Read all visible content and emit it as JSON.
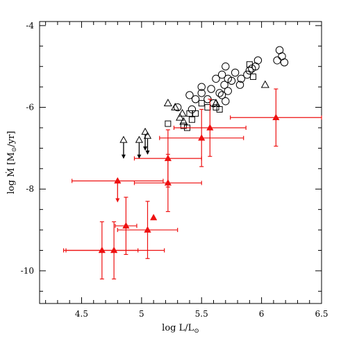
{
  "chart_data": {
    "type": "scatter",
    "title": "",
    "xlabel": "log L/L",
    "xlabel_sub": "⊙",
    "ylabel_main": "log Ṁ [M",
    "ylabel_sub": "⊙",
    "ylabel_tail": "/yr]",
    "xlim": [
      4.15,
      6.5
    ],
    "ylim": [
      -10.8,
      -3.9
    ],
    "x_ticks": [
      4.5,
      5,
      5.5,
      6,
      6.5
    ],
    "x_tick_labels": [
      "4.5",
      "5",
      "5.5",
      "6",
      "6.5"
    ],
    "y_ticks": [
      -10,
      -8,
      -6,
      -4
    ],
    "y_tick_labels": [
      "-10",
      "-8",
      "-6",
      "-4"
    ],
    "x_minor_step": 0.1,
    "y_minor_step": 0.5,
    "grid": false,
    "colors": {
      "red": "#ee1111",
      "black": "#000000"
    },
    "series": [
      {
        "marker": "circle-open",
        "points": [
          [
            6.15,
            -4.6
          ],
          [
            6.17,
            -4.75
          ],
          [
            6.19,
            -4.9
          ],
          [
            6.13,
            -4.85
          ],
          [
            5.97,
            -4.85
          ],
          [
            5.95,
            -5.0
          ],
          [
            5.92,
            -5.05
          ],
          [
            5.9,
            -5.1
          ],
          [
            5.88,
            -5.2
          ],
          [
            5.83,
            -5.3
          ],
          [
            5.78,
            -5.15
          ],
          [
            5.82,
            -5.45
          ],
          [
            5.7,
            -5.0
          ],
          [
            5.72,
            -5.3
          ],
          [
            5.75,
            -5.35
          ],
          [
            5.67,
            -5.2
          ],
          [
            5.69,
            -5.45
          ],
          [
            5.62,
            -5.3
          ],
          [
            5.72,
            -5.6
          ],
          [
            5.65,
            -5.65
          ],
          [
            5.58,
            -5.55
          ],
          [
            5.6,
            -5.9
          ],
          [
            5.67,
            -5.7
          ],
          [
            5.7,
            -5.85
          ],
          [
            5.5,
            -5.5
          ],
          [
            5.5,
            -5.65
          ],
          [
            5.4,
            -5.7
          ],
          [
            5.45,
            -5.8
          ],
          [
            5.42,
            -6.05
          ],
          [
            5.3,
            -6.0
          ],
          [
            5.55,
            -5.8
          ]
        ]
      },
      {
        "marker": "square-open",
        "points": [
          [
            5.93,
            -5.25
          ],
          [
            5.9,
            -4.95
          ],
          [
            5.5,
            -5.9
          ],
          [
            5.55,
            -6.0
          ],
          [
            5.62,
            -6.0
          ],
          [
            5.65,
            -6.05
          ],
          [
            5.4,
            -6.15
          ],
          [
            5.45,
            -6.15
          ],
          [
            5.38,
            -6.5
          ],
          [
            5.35,
            -6.45
          ],
          [
            5.42,
            -6.3
          ],
          [
            5.22,
            -6.4
          ]
        ]
      },
      {
        "marker": "triangle-open",
        "points": [
          [
            6.03,
            -5.45
          ],
          [
            5.22,
            -5.9
          ],
          [
            5.28,
            -6.0
          ],
          [
            5.34,
            -6.15
          ],
          [
            5.32,
            -6.25
          ],
          [
            5.35,
            -6.35
          ],
          [
            5.62,
            -5.9
          ]
        ]
      },
      {
        "marker": "triangle-open-upperlimit",
        "points": [
          [
            4.85,
            -6.8
          ],
          [
            4.98,
            -6.8
          ],
          [
            5.03,
            -6.6
          ],
          [
            5.05,
            -6.7
          ]
        ]
      },
      {
        "marker": "triangle-filled-errorbar",
        "color": "#ee1111",
        "points": [
          {
            "x": 6.12,
            "y": -6.25,
            "xerr": 0.38,
            "yerr": 0.7
          },
          {
            "x": 5.57,
            "y": -6.5,
            "xerr": 0.3,
            "yerr": 0.7
          },
          {
            "x": 5.5,
            "y": -6.75,
            "xerr": 0.35,
            "yerr": 0.7
          },
          {
            "x": 5.22,
            "y": -7.25,
            "xerr": 0.28,
            "yerr": 0.7
          },
          {
            "x": 5.22,
            "y": -7.85,
            "xerr": 0.28,
            "yerr": 0.7
          },
          {
            "x": 4.8,
            "y": -7.8,
            "xerr": 0.38,
            "yerr": 0.0,
            "upperlimit": true
          },
          {
            "x": 5.1,
            "y": -8.7,
            "xerr": 0.0,
            "yerr": 0.0
          },
          {
            "x": 4.87,
            "y": -8.9,
            "xerr": 0.09,
            "yerr": 0.7
          },
          {
            "x": 5.05,
            "y": -9.0,
            "xerr": 0.25,
            "yerr": 0.7
          },
          {
            "x": 4.67,
            "y": -9.5,
            "xerr": 0.3,
            "yerr": 0.7
          },
          {
            "x": 4.77,
            "y": -9.5,
            "xerr": 0.42,
            "yerr": 0.7
          }
        ]
      }
    ]
  }
}
